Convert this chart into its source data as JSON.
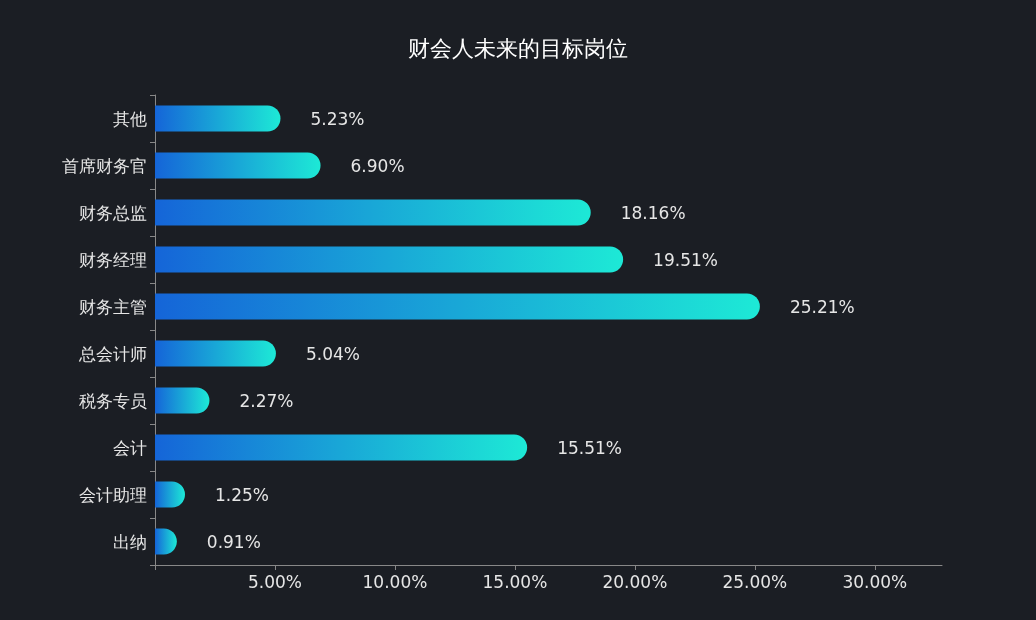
{
  "chart_data": {
    "type": "bar",
    "orientation": "horizontal",
    "title": "财会人未来的目标岗位",
    "categories": [
      "其他",
      "首席财务官",
      "财务总监",
      "财务经理",
      "财务主管",
      "总会计师",
      "税务专员",
      "会计",
      "会计助理",
      "出纳"
    ],
    "values": [
      5.23,
      6.9,
      18.16,
      19.51,
      25.21,
      5.04,
      2.27,
      15.51,
      1.25,
      0.91
    ],
    "value_labels": [
      "5.23%",
      "6.90%",
      "18.16%",
      "19.51%",
      "25.21%",
      "5.04%",
      "2.27%",
      "15.51%",
      "1.25%",
      "0.91%"
    ],
    "color": "#1de9d6",
    "xlim": [
      0,
      32.8
    ],
    "xticks": [
      {
        "value": 0,
        "label": null
      },
      {
        "value": 5,
        "label": "5.00%"
      },
      {
        "value": 10,
        "label": "10.00%"
      },
      {
        "value": 15,
        "label": "15.00%"
      },
      {
        "value": 20,
        "label": "20.00%"
      },
      {
        "value": 25,
        "label": "25.00%"
      },
      {
        "value": 30,
        "label": "30.00%"
      }
    ],
    "grid": false
  }
}
